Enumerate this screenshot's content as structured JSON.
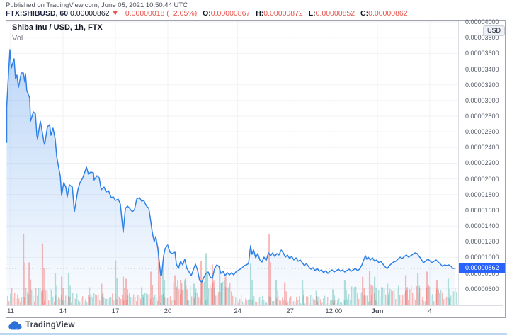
{
  "header": {
    "published_line": "Published on TradingView.com, June 05, 2021 10:50:44 UTC",
    "symbol": "FTX:SHIBUSD, 60",
    "last_price": "0.00000862",
    "direction_icon": "▼",
    "change_abs": "−0.00000018",
    "change_pct": "(−2.05%)",
    "ohlc": {
      "o": {
        "label": "O:",
        "value": "0.00000867"
      },
      "h": {
        "label": "H:",
        "value": "0.00000872"
      },
      "l": {
        "label": "L:",
        "value": "0.00000852"
      },
      "c": {
        "label": "C:",
        "value": "0.00000862"
      }
    }
  },
  "chart": {
    "title": "Shiba Inu / USD, 1h, FTX",
    "volume_label": "Vol",
    "unit_badge": "USD",
    "current_price_label": "0.00000862"
  },
  "footer": {
    "brand": "TradingView"
  },
  "colors": {
    "line": "#2f81e8",
    "area_top": "rgba(47,129,232,0.32)",
    "area_bottom": "rgba(47,129,232,0.02)",
    "grid": "#f0f2f6",
    "dotted_price_line": "#76808f",
    "price_tag_bg": "#2962ff",
    "vol_red": "rgba(239,83,80,0.40)",
    "vol_green": "rgba(38,166,154,0.35)",
    "bottom_strip": "#bcd7f0",
    "logo_blue": "#2d72d9",
    "logo_blue_light": "#6ea6f0"
  },
  "chart_data": {
    "type": "area",
    "title": "Shiba Inu / USD, 1h, FTX",
    "exchange": "FTX",
    "interval": "1h",
    "price_scale": 1e-08,
    "x_axis_note": "day 0 = May 11 2021 00:00 UTC",
    "current_price_e8": 862,
    "ylim_e8": [
      560,
      4060
    ],
    "y_ticks": [
      {
        "v": 4000,
        "label": "0.00004000"
      },
      {
        "v": 3800,
        "label": "0.00003800"
      },
      {
        "v": 3600,
        "label": "0.00003600"
      },
      {
        "v": 3400,
        "label": "0.00003400"
      },
      {
        "v": 3200,
        "label": "0.00003200"
      },
      {
        "v": 3000,
        "label": "0.00003000"
      },
      {
        "v": 2800,
        "label": "0.00002800"
      },
      {
        "v": 2600,
        "label": "0.00002600"
      },
      {
        "v": 2400,
        "label": "0.00002400"
      },
      {
        "v": 2200,
        "label": "0.00002200"
      },
      {
        "v": 2000,
        "label": "0.00002000"
      },
      {
        "v": 1800,
        "label": "0.00001800"
      },
      {
        "v": 1600,
        "label": "0.00001600"
      },
      {
        "v": 1400,
        "label": "0.00001400"
      },
      {
        "v": 1200,
        "label": "0.00001200"
      },
      {
        "v": 1000,
        "label": "0.00001000"
      },
      {
        "v": 800,
        "label": "0.00000800"
      },
      {
        "v": 600,
        "label": "0.00000600"
      }
    ],
    "x_ticks": [
      {
        "label": "11",
        "day": 0,
        "bold": false
      },
      {
        "label": "14",
        "day": 3,
        "bold": false
      },
      {
        "label": "17",
        "day": 6,
        "bold": false
      },
      {
        "label": "20",
        "day": 9,
        "bold": false
      },
      {
        "label": "24",
        "day": 13,
        "bold": false
      },
      {
        "label": "27",
        "day": 16,
        "bold": false
      },
      {
        "label": "12:00",
        "day": 18.5,
        "bold": false
      },
      {
        "label": "Jun",
        "day": 21,
        "bold": true
      },
      {
        "label": "4",
        "day": 24,
        "bold": false
      }
    ],
    "series_e8": [
      [
        -0.32,
        2466
      ],
      [
        -0.24,
        2917
      ],
      [
        -0.16,
        3188
      ],
      [
        -0.04,
        3648
      ],
      [
        0.04,
        3413
      ],
      [
        0.12,
        3477
      ],
      [
        0.2,
        3531
      ],
      [
        0.28,
        3278
      ],
      [
        0.36,
        3323
      ],
      [
        0.45,
        3169
      ],
      [
        0.53,
        3260
      ],
      [
        0.61,
        3350
      ],
      [
        0.73,
        3350
      ],
      [
        0.81,
        3233
      ],
      [
        0.85,
        3341
      ],
      [
        0.93,
        3124
      ],
      [
        1.01,
        3079
      ],
      [
        1.09,
        3034
      ],
      [
        1.14,
        2736
      ],
      [
        1.3,
        2854
      ],
      [
        1.42,
        2827
      ],
      [
        1.5,
        2556
      ],
      [
        1.54,
        2511
      ],
      [
        1.7,
        2736
      ],
      [
        1.74,
        2691
      ],
      [
        1.91,
        2466
      ],
      [
        1.95,
        2439
      ],
      [
        2.11,
        2664
      ],
      [
        2.23,
        2691
      ],
      [
        2.31,
        2556
      ],
      [
        2.43,
        2646
      ],
      [
        2.55,
        2511
      ],
      [
        2.64,
        2285
      ],
      [
        2.76,
        2132
      ],
      [
        2.84,
        2041
      ],
      [
        2.92,
        1789
      ],
      [
        3.04,
        1951
      ],
      [
        3.16,
        1897
      ],
      [
        3.24,
        1771
      ],
      [
        3.36,
        1924
      ],
      [
        3.53,
        1897
      ],
      [
        3.65,
        1581
      ],
      [
        3.85,
        1861
      ],
      [
        3.97,
        1951
      ],
      [
        4.13,
        2014
      ],
      [
        4.34,
        2150
      ],
      [
        4.46,
        2060
      ],
      [
        4.58,
        2087
      ],
      [
        4.74,
        2078
      ],
      [
        4.78,
        1987
      ],
      [
        4.95,
        2041
      ],
      [
        5.07,
        2014
      ],
      [
        5.19,
        1861
      ],
      [
        5.35,
        1897
      ],
      [
        5.47,
        1834
      ],
      [
        5.6,
        1852
      ],
      [
        5.76,
        1762
      ],
      [
        5.88,
        1771
      ],
      [
        6.0,
        1726
      ],
      [
        6.16,
        1744
      ],
      [
        6.28,
        1681
      ],
      [
        6.44,
        1320
      ],
      [
        6.57,
        1626
      ],
      [
        6.69,
        1653
      ],
      [
        6.81,
        1626
      ],
      [
        6.97,
        1581
      ],
      [
        7.09,
        1608
      ],
      [
        7.22,
        1744
      ],
      [
        7.38,
        1762
      ],
      [
        7.5,
        1717
      ],
      [
        7.62,
        1726
      ],
      [
        7.78,
        1653
      ],
      [
        7.91,
        1626
      ],
      [
        8.03,
        1446
      ],
      [
        8.11,
        1320
      ],
      [
        8.19,
        1229
      ],
      [
        8.23,
        1202
      ],
      [
        8.31,
        1265
      ],
      [
        8.43,
        1112
      ],
      [
        8.59,
        778
      ],
      [
        8.64,
        769
      ],
      [
        8.76,
        1022
      ],
      [
        8.84,
        1112
      ],
      [
        8.99,
        1157
      ],
      [
        9.12,
        1067
      ],
      [
        9.24,
        1049
      ],
      [
        9.41,
        1067
      ],
      [
        9.49,
        913
      ],
      [
        9.61,
        859
      ],
      [
        9.73,
        950
      ],
      [
        9.85,
        904
      ],
      [
        9.97,
        977
      ],
      [
        10.09,
        859
      ],
      [
        10.22,
        814
      ],
      [
        10.34,
        769
      ],
      [
        10.46,
        841
      ],
      [
        10.58,
        913
      ],
      [
        10.7,
        841
      ],
      [
        10.82,
        706
      ],
      [
        10.95,
        687
      ],
      [
        11.07,
        751
      ],
      [
        11.19,
        796
      ],
      [
        11.31,
        814
      ],
      [
        11.43,
        751
      ],
      [
        11.55,
        732
      ],
      [
        11.68,
        859
      ],
      [
        11.8,
        904
      ],
      [
        11.92,
        886
      ],
      [
        12.04,
        796
      ],
      [
        12.16,
        823
      ],
      [
        12.28,
        769
      ],
      [
        12.41,
        805
      ],
      [
        12.53,
        778
      ],
      [
        12.65,
        805
      ],
      [
        12.77,
        778
      ],
      [
        12.89,
        814
      ],
      [
        13.01,
        832
      ],
      [
        13.14,
        850
      ],
      [
        13.26,
        868
      ],
      [
        13.38,
        895
      ],
      [
        13.5,
        904
      ],
      [
        13.62,
        922
      ],
      [
        13.74,
        1148
      ],
      [
        13.82,
        1040
      ],
      [
        13.91,
        1094
      ],
      [
        14.03,
        995
      ],
      [
        14.15,
        1049
      ],
      [
        14.27,
        968
      ],
      [
        14.39,
        941
      ],
      [
        14.51,
        1004
      ],
      [
        14.63,
        959
      ],
      [
        14.76,
        1058
      ],
      [
        14.88,
        1022
      ],
      [
        15.0,
        1058
      ],
      [
        15.12,
        1013
      ],
      [
        15.24,
        1049
      ],
      [
        15.36,
        1031
      ],
      [
        15.49,
        1094
      ],
      [
        15.61,
        1058
      ],
      [
        15.73,
        1004
      ],
      [
        15.85,
        1031
      ],
      [
        15.97,
        986
      ],
      [
        16.09,
        1013
      ],
      [
        16.21,
        968
      ],
      [
        16.34,
        995
      ],
      [
        16.46,
        950
      ],
      [
        16.58,
        968
      ],
      [
        16.7,
        932
      ],
      [
        16.82,
        895
      ],
      [
        16.94,
        922
      ],
      [
        17.07,
        877
      ],
      [
        17.19,
        850
      ],
      [
        17.31,
        868
      ],
      [
        17.43,
        832
      ],
      [
        17.55,
        859
      ],
      [
        17.67,
        823
      ],
      [
        17.8,
        841
      ],
      [
        17.92,
        805
      ],
      [
        18.04,
        832
      ],
      [
        18.16,
        796
      ],
      [
        18.28,
        823
      ],
      [
        18.4,
        841
      ],
      [
        18.52,
        814
      ],
      [
        18.65,
        832
      ],
      [
        18.77,
        850
      ],
      [
        18.89,
        823
      ],
      [
        19.01,
        841
      ],
      [
        19.13,
        814
      ],
      [
        19.25,
        832
      ],
      [
        19.38,
        850
      ],
      [
        19.5,
        823
      ],
      [
        19.62,
        841
      ],
      [
        19.74,
        859
      ],
      [
        19.86,
        832
      ],
      [
        19.98,
        850
      ],
      [
        20.11,
        904
      ],
      [
        20.23,
        977
      ],
      [
        20.31,
        1022
      ],
      [
        20.39,
        977
      ],
      [
        20.47,
        1004
      ],
      [
        20.59,
        968
      ],
      [
        20.72,
        995
      ],
      [
        20.84,
        950
      ],
      [
        20.96,
        968
      ],
      [
        21.08,
        932
      ],
      [
        21.2,
        950
      ],
      [
        21.32,
        913
      ],
      [
        21.45,
        877
      ],
      [
        21.57,
        859
      ],
      [
        21.69,
        895
      ],
      [
        21.81,
        922
      ],
      [
        21.93,
        941
      ],
      [
        22.05,
        950
      ],
      [
        22.17,
        977
      ],
      [
        22.3,
        1004
      ],
      [
        22.42,
        986
      ],
      [
        22.54,
        1013
      ],
      [
        22.66,
        1031
      ],
      [
        22.78,
        1004
      ],
      [
        22.9,
        1022
      ],
      [
        23.03,
        1040
      ],
      [
        23.15,
        1058
      ],
      [
        23.27,
        1049
      ],
      [
        23.39,
        1013
      ],
      [
        23.51,
        977
      ],
      [
        23.63,
        932
      ],
      [
        23.75,
        950
      ],
      [
        23.88,
        977
      ],
      [
        24.0,
        959
      ],
      [
        24.12,
        932
      ],
      [
        24.24,
        950
      ],
      [
        24.36,
        968
      ],
      [
        24.48,
        941
      ],
      [
        24.61,
        913
      ],
      [
        24.73,
        886
      ],
      [
        24.85,
        904
      ],
      [
        24.97,
        895
      ],
      [
        25.09,
        904
      ],
      [
        25.21,
        886
      ],
      [
        25.33,
        859
      ],
      [
        25.46,
        862
      ]
    ],
    "volume_spikes": [
      [
        0.73,
        100,
        "r"
      ],
      [
        1.06,
        60,
        "r"
      ],
      [
        1.82,
        87,
        "r"
      ],
      [
        2.55,
        45,
        "g"
      ],
      [
        2.92,
        40,
        "r"
      ],
      [
        3.32,
        45,
        "g"
      ],
      [
        4.5,
        25,
        "g"
      ],
      [
        5.2,
        30,
        "r"
      ],
      [
        6.0,
        63,
        "g"
      ],
      [
        6.44,
        40,
        "r"
      ],
      [
        6.61,
        37,
        "r"
      ],
      [
        7.5,
        25,
        "g"
      ],
      [
        8.03,
        47,
        "r"
      ],
      [
        8.47,
        82,
        "r"
      ],
      [
        8.72,
        58,
        "g"
      ],
      [
        9.41,
        42,
        "r"
      ],
      [
        9.73,
        35,
        "r"
      ],
      [
        10.01,
        37,
        "r"
      ],
      [
        10.5,
        30,
        "g"
      ],
      [
        10.9,
        62,
        "r"
      ],
      [
        11.19,
        73,
        "g"
      ],
      [
        11.55,
        57,
        "r"
      ],
      [
        11.96,
        52,
        "g"
      ],
      [
        12.3,
        40,
        "r"
      ],
      [
        13.74,
        58,
        "g"
      ],
      [
        14.8,
        100,
        "r"
      ],
      [
        15.2,
        35,
        "g"
      ],
      [
        15.69,
        32,
        "r"
      ],
      [
        16.7,
        35,
        "g"
      ],
      [
        17.5,
        20,
        "g"
      ],
      [
        18.45,
        22,
        "g"
      ],
      [
        19.13,
        35,
        "g"
      ],
      [
        20.15,
        40,
        "r"
      ],
      [
        20.55,
        48,
        "r"
      ],
      [
        20.84,
        40,
        "g"
      ],
      [
        21.57,
        30,
        "g"
      ],
      [
        22.62,
        42,
        "r"
      ],
      [
        23.31,
        45,
        "g"
      ],
      [
        23.84,
        47,
        "r"
      ],
      [
        24.4,
        35,
        "r"
      ],
      [
        25.05,
        37,
        "g"
      ]
    ],
    "volume_zones": [
      [
        -0.4,
        2.5,
        14
      ],
      [
        2.5,
        9.0,
        10
      ],
      [
        9.0,
        12.7,
        20
      ],
      [
        12.7,
        19.3,
        8
      ],
      [
        19.3,
        25.6,
        16
      ]
    ],
    "volume_seed": 987654321,
    "legend_position": "none",
    "grid": true
  }
}
